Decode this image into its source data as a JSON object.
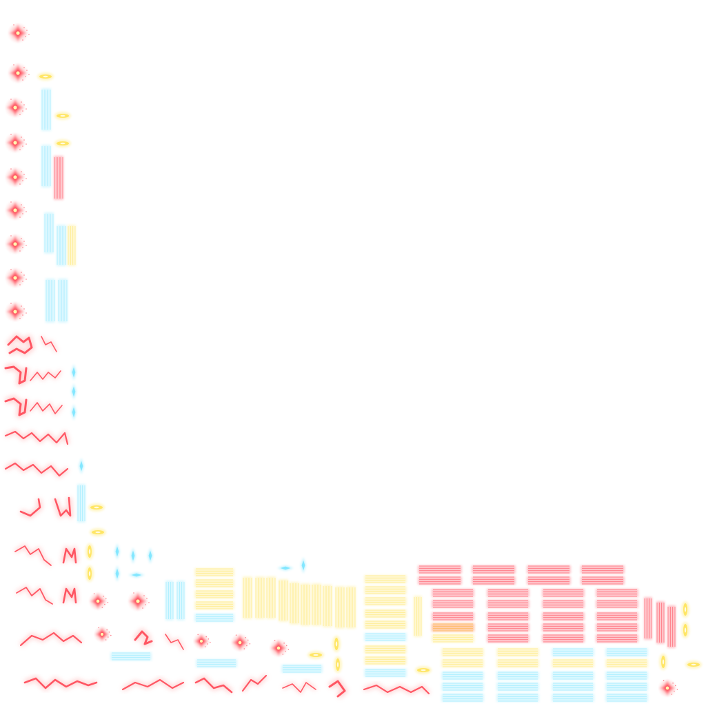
{
  "atlas": {
    "colors": {
      "red": "#ff3344",
      "red_soft": "#ff8a8a",
      "cyan": "#7fe6ff",
      "yellow": "#ffe45a",
      "core": "#fff7b0",
      "background": "#ffffff"
    },
    "sprite_groups": [
      {
        "name": "red-spark-star-column",
        "color": "red",
        "count": 9
      },
      {
        "name": "red-lightning-bolt-sprites",
        "color": "red",
        "count": 22
      },
      {
        "name": "cyan-beam-strips",
        "color": "cyan",
        "count": 12
      },
      {
        "name": "yellow-beam-strips",
        "color": "yellow",
        "count": 30
      },
      {
        "name": "red-beam-strip-grid",
        "color": "red",
        "count": 28
      },
      {
        "name": "cyan-arrow-sprites",
        "color": "cyan",
        "count": 10
      },
      {
        "name": "yellow-dash-sprites",
        "color": "yellow",
        "count": 12
      }
    ]
  }
}
